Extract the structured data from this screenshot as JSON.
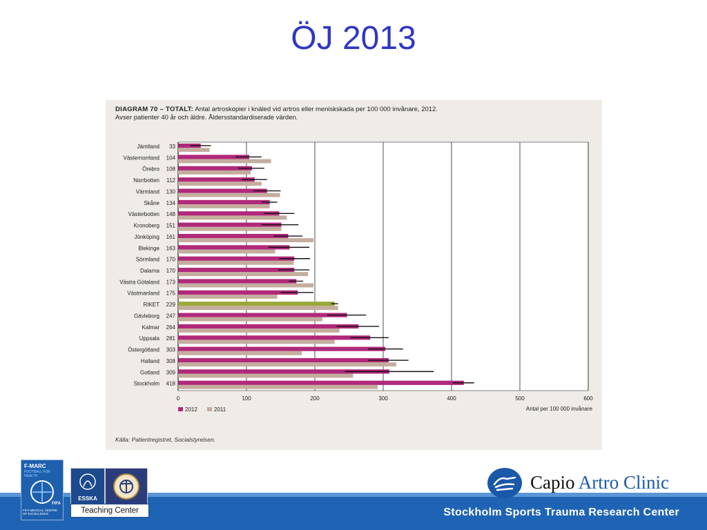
{
  "slide": {
    "title": "ÖJ 2013",
    "footer": "Stockholm Sports Trauma Research Center",
    "teaching_center": "Teaching Center"
  },
  "logos": {
    "fmarc_title": "F-MARC",
    "fmarc_sub": "FOOTBALL FOR HEALTH",
    "fmarc_bottom": "FIFA MEDICAL CENTRE OF EXCELLENCE",
    "fmarc_fifa": "FIFA",
    "esska": "ESSKA",
    "capio_part1": "Capio",
    "capio_part2": "Artro Clinic"
  },
  "figure": {
    "diagram_label": "DIAGRAM 70 – TOTALT:",
    "heading_line1": "Antal artroskopier i knäled vid artros eller meniskskada per 100 000 invånare, 2012.",
    "heading_line2": "Avser patienter 40 år och äldre. Åldersstandardiserade värden.",
    "source": "Källa: Patientregistret, Socialstyrelsen."
  },
  "colors": {
    "title": "#2f37c2",
    "bar_2012": "#b0297a",
    "bar_2011": "#c4ad9e",
    "bar_riket": "#9aa83a",
    "footer_band": "#1f64b4"
  },
  "chart_data": {
    "type": "bar",
    "orientation": "horizontal",
    "categories": [
      "Jämtland",
      "Västernorrland",
      "Örebro",
      "Norrbotten",
      "Värmland",
      "Skåne",
      "Västerbotten",
      "Kronoberg",
      "Jönköping",
      "Blekinge",
      "Sörmland",
      "Dalarna",
      "Västra Götaland",
      "Västmanland",
      "RIKET",
      "Gävleborg",
      "Kalmar",
      "Uppsala",
      "Östergötland",
      "Halland",
      "Gotland",
      "Stockholm"
    ],
    "category_values_printed": [
      "33",
      "104",
      "108",
      "112",
      "130",
      "134",
      "148",
      "151",
      "161",
      "163",
      "170",
      "170",
      "173",
      "175",
      "229",
      "247",
      "264",
      "281",
      "303",
      "308",
      "309",
      "418"
    ],
    "series": [
      {
        "name": "2012",
        "values": [
          33,
          104,
          108,
          112,
          130,
          134,
          148,
          151,
          161,
          163,
          170,
          170,
          173,
          175,
          229,
          247,
          264,
          281,
          303,
          308,
          309,
          418
        ],
        "error_low": [
          18,
          84,
          88,
          93,
          110,
          122,
          125,
          122,
          140,
          132,
          148,
          146,
          162,
          150,
          224,
          218,
          232,
          252,
          278,
          278,
          244,
          402
        ],
        "error_high": [
          48,
          122,
          126,
          130,
          150,
          145,
          170,
          176,
          182,
          192,
          193,
          192,
          183,
          198,
          234,
          275,
          294,
          308,
          329,
          337,
          374,
          433
        ]
      },
      {
        "name": "2011",
        "values": [
          46,
          136,
          106,
          122,
          149,
          134,
          159,
          151,
          198,
          142,
          169,
          190,
          198,
          145,
          234,
          211,
          236,
          229,
          181,
          319,
          256,
          292
        ]
      }
    ],
    "highlight_category": "RIKET",
    "x_ticks": [
      0,
      100,
      200,
      300,
      400,
      500,
      600
    ],
    "xlim": [
      0,
      600
    ],
    "xlabel": "Antal per 100 000 invånare",
    "legend_position": "bottom-left",
    "grid": true
  }
}
